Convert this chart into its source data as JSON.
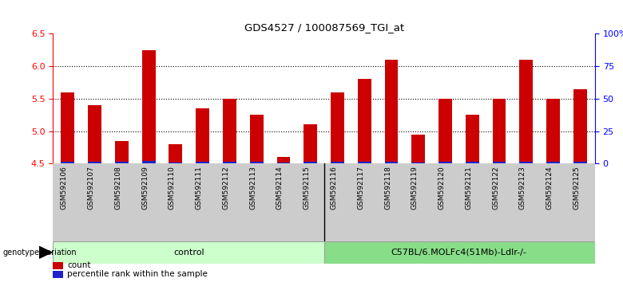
{
  "title": "GDS4527 / 100087569_TGI_at",
  "samples": [
    "GSM592106",
    "GSM592107",
    "GSM592108",
    "GSM592109",
    "GSM592110",
    "GSM592111",
    "GSM592112",
    "GSM592113",
    "GSM592114",
    "GSM592115",
    "GSM592116",
    "GSM592117",
    "GSM592118",
    "GSM592119",
    "GSM592120",
    "GSM592121",
    "GSM592122",
    "GSM592123",
    "GSM592124",
    "GSM592125"
  ],
  "red_values": [
    5.6,
    5.4,
    4.85,
    6.25,
    4.8,
    5.35,
    5.5,
    5.25,
    4.6,
    5.1,
    5.6,
    5.8,
    6.1,
    4.95,
    5.5,
    5.25,
    5.5,
    6.1,
    5.5,
    5.65
  ],
  "blue_values": [
    1.5,
    1.5,
    1.5,
    2.0,
    1.0,
    1.5,
    1.5,
    1.5,
    1.0,
    1.5,
    1.5,
    1.5,
    1.5,
    1.0,
    1.5,
    1.5,
    1.5,
    1.5,
    1.5,
    1.5
  ],
  "ylim_left": [
    4.5,
    6.5
  ],
  "ylim_right": [
    0,
    100
  ],
  "yticks_left": [
    4.5,
    5.0,
    5.5,
    6.0,
    6.5
  ],
  "yticks_right": [
    0,
    25,
    50,
    75,
    100
  ],
  "ytick_labels_right": [
    "0",
    "25",
    "50",
    "75",
    "100%"
  ],
  "bar_bottom": 4.5,
  "bar_width": 0.5,
  "red_color": "#CC0000",
  "blue_color": "#2222CC",
  "control_count": 10,
  "mutant_count": 10,
  "control_label": "control",
  "mutant_label": "C57BL/6.MOLFc4(51Mb)-Ldlr-/-",
  "genotype_label": "genotype/variation",
  "legend_count": "count",
  "legend_percentile": "percentile rank within the sample",
  "control_color": "#ccffcc",
  "mutant_color": "#88dd88",
  "label_bg_color": "#cccccc",
  "grid_color": "black"
}
